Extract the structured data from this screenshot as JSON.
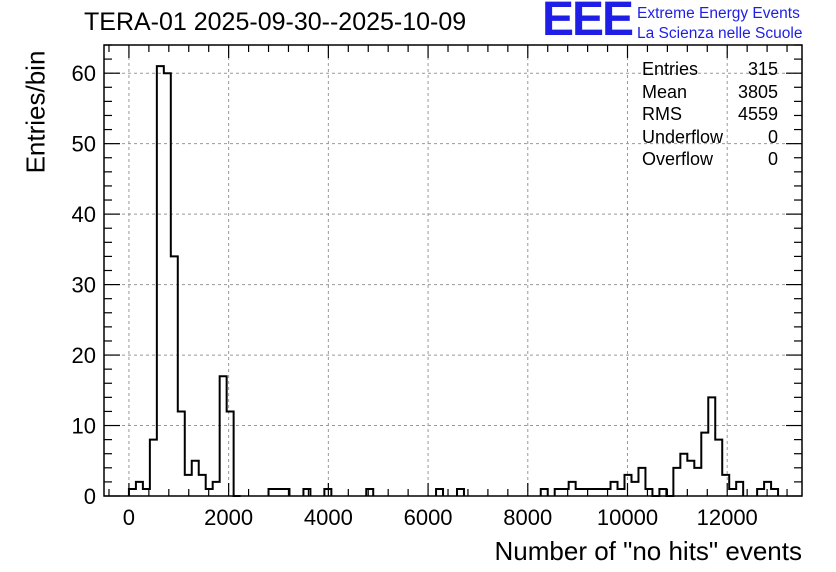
{
  "chart_data": {
    "type": "bar",
    "title": "TERA-01 2025-09-30--2025-10-09",
    "xlabel": "Number of \"no hits\" events",
    "ylabel": "Entries/bin",
    "xlim": [
      -500,
      13500
    ],
    "ylim": [
      0,
      64
    ],
    "bin_width": 140,
    "x_ticks": [
      0,
      2000,
      4000,
      6000,
      8000,
      10000,
      12000
    ],
    "y_ticks": [
      0,
      10,
      20,
      30,
      40,
      50,
      60
    ],
    "grid": true,
    "bins": [
      {
        "x": 0,
        "y": 1
      },
      {
        "x": 140,
        "y": 2
      },
      {
        "x": 280,
        "y": 1
      },
      {
        "x": 420,
        "y": 8
      },
      {
        "x": 560,
        "y": 61
      },
      {
        "x": 700,
        "y": 60
      },
      {
        "x": 840,
        "y": 34
      },
      {
        "x": 980,
        "y": 12
      },
      {
        "x": 1120,
        "y": 3
      },
      {
        "x": 1260,
        "y": 5
      },
      {
        "x": 1400,
        "y": 3
      },
      {
        "x": 1540,
        "y": 1
      },
      {
        "x": 1680,
        "y": 2
      },
      {
        "x": 1820,
        "y": 17
      },
      {
        "x": 1960,
        "y": 12
      },
      {
        "x": 2100,
        "y": 0
      },
      {
        "x": 2800,
        "y": 1
      },
      {
        "x": 2940,
        "y": 1
      },
      {
        "x": 3080,
        "y": 1
      },
      {
        "x": 3500,
        "y": 1
      },
      {
        "x": 3920,
        "y": 1
      },
      {
        "x": 4760,
        "y": 1
      },
      {
        "x": 6160,
        "y": 1
      },
      {
        "x": 6580,
        "y": 1
      },
      {
        "x": 8260,
        "y": 1
      },
      {
        "x": 8540,
        "y": 1
      },
      {
        "x": 8680,
        "y": 1
      },
      {
        "x": 8820,
        "y": 2
      },
      {
        "x": 8960,
        "y": 1
      },
      {
        "x": 9100,
        "y": 1
      },
      {
        "x": 9240,
        "y": 1
      },
      {
        "x": 9380,
        "y": 1
      },
      {
        "x": 9520,
        "y": 1
      },
      {
        "x": 9660,
        "y": 2
      },
      {
        "x": 9800,
        "y": 1
      },
      {
        "x": 9940,
        "y": 3
      },
      {
        "x": 10080,
        "y": 2
      },
      {
        "x": 10220,
        "y": 4
      },
      {
        "x": 10360,
        "y": 1
      },
      {
        "x": 10500,
        "y": 0
      },
      {
        "x": 10640,
        "y": 1
      },
      {
        "x": 10780,
        "y": 0
      },
      {
        "x": 10920,
        "y": 4
      },
      {
        "x": 11060,
        "y": 6
      },
      {
        "x": 11200,
        "y": 5
      },
      {
        "x": 11340,
        "y": 4
      },
      {
        "x": 11480,
        "y": 9
      },
      {
        "x": 11620,
        "y": 14
      },
      {
        "x": 11760,
        "y": 8
      },
      {
        "x": 11900,
        "y": 3
      },
      {
        "x": 12040,
        "y": 1
      },
      {
        "x": 12180,
        "y": 2
      },
      {
        "x": 12600,
        "y": 1
      },
      {
        "x": 12740,
        "y": 2
      },
      {
        "x": 12880,
        "y": 1
      }
    ],
    "stats": [
      {
        "name": "Entries",
        "value": "315"
      },
      {
        "name": "Mean",
        "value": "3805"
      },
      {
        "name": "RMS",
        "value": "4559"
      },
      {
        "name": "Underflow",
        "value": "0"
      },
      {
        "name": "Overflow",
        "value": "0"
      }
    ]
  },
  "logo": {
    "mark": "EEE",
    "line1": "Extreme Energy Events",
    "line2": "La Scienza nelle Scuole",
    "color": "#1e1ee6"
  },
  "colors": {
    "line": "#000000",
    "grid": "#999999"
  }
}
